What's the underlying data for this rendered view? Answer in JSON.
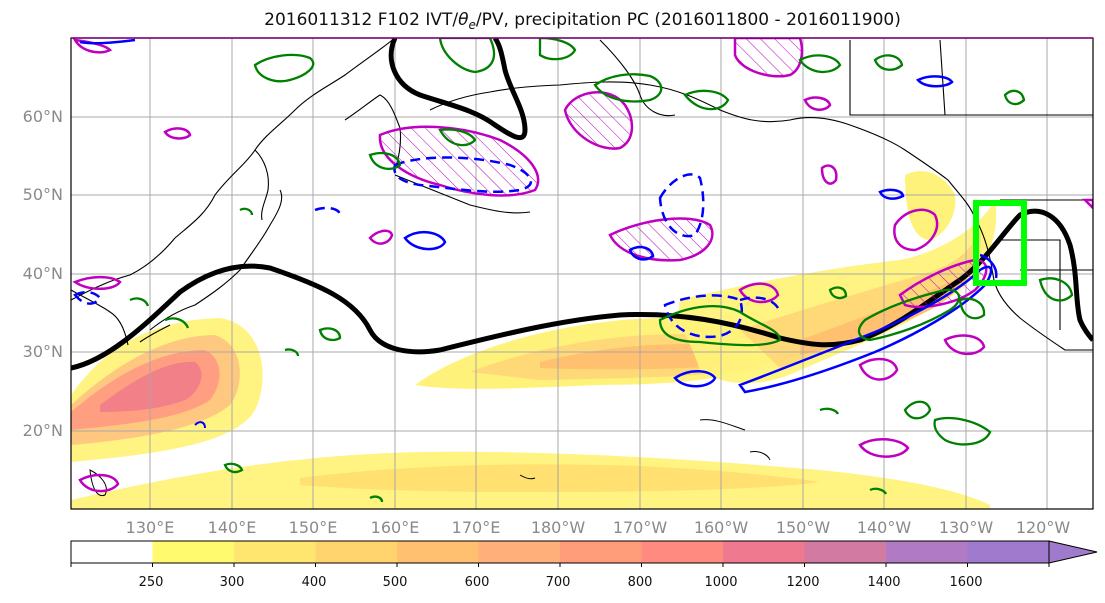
{
  "title": {
    "prefix": "2016011312 F102 IVT/",
    "theta": "θ",
    "theta_sub": "e",
    "suffix": "/PV, precipitation PC (2016011800 - 2016011900)"
  },
  "map": {
    "lat_labels": [
      "60°N",
      "50°N",
      "40°N",
      "30°N",
      "20°N"
    ],
    "lon_labels": [
      "130°E",
      "140°E",
      "150°E",
      "160°E",
      "170°E",
      "180°W",
      "170°W",
      "160°W",
      "150°W",
      "140°W",
      "130°W",
      "120°W"
    ],
    "colors": {
      "ocean": "#ffffff",
      "coast": "#000000",
      "grid": "#a8a8a8",
      "theta_e_contour": "#000000",
      "pv_contour": "#0000ff",
      "precip_contour": "#008000",
      "hatch_contour": "#c000c0",
      "highlight_box": "#00ff00"
    }
  },
  "colorbar": {
    "levels": [
      "250",
      "300",
      "400",
      "500",
      "600",
      "700",
      "800",
      "1000",
      "1200",
      "1400",
      "1600"
    ],
    "colors": [
      "#ffffff",
      "#fffa6e",
      "#ffe66e",
      "#ffd46e",
      "#ffc170",
      "#ffb07a",
      "#ff9c7a",
      "#ff8a80",
      "#ef7a90",
      "#d37aa3",
      "#b07ac5",
      "#a07acc"
    ]
  }
}
